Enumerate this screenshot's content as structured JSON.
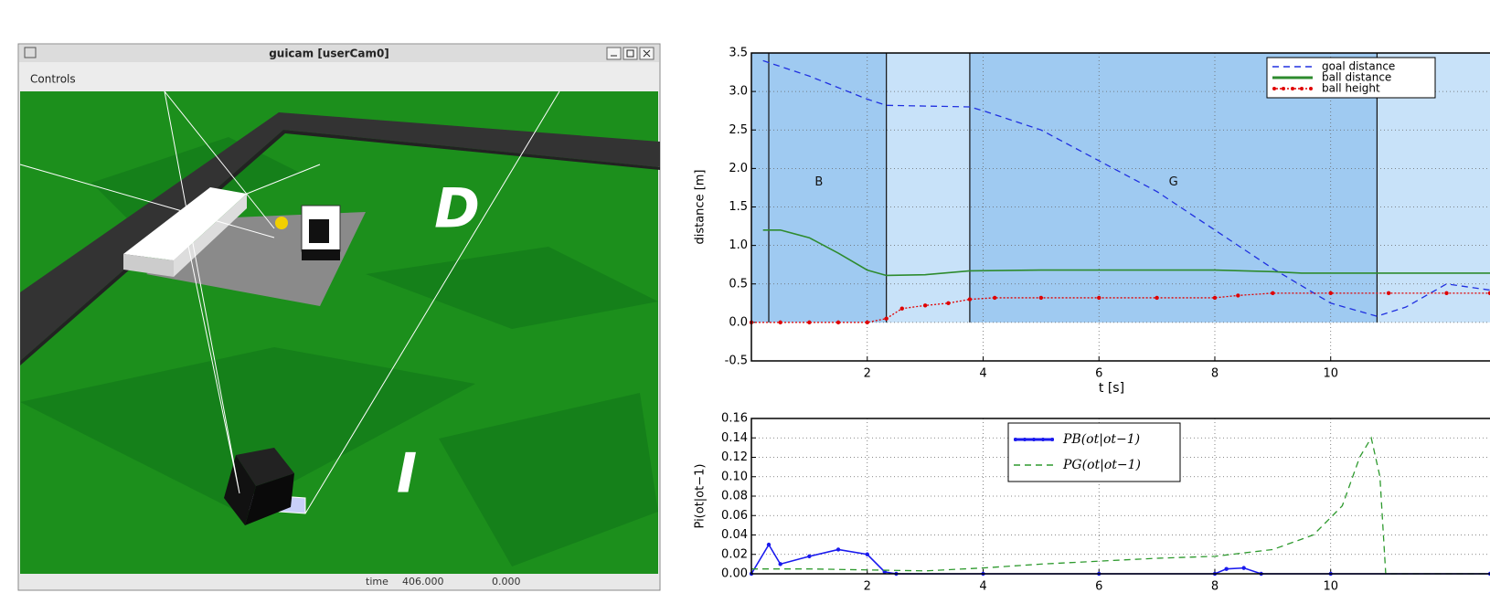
{
  "window": {
    "title": "guicam [userCam0]",
    "menu": [
      "Controls"
    ],
    "overlay_labels": [
      "D",
      "I"
    ],
    "status": {
      "label": "time",
      "values": [
        "406.000",
        "0.000"
      ]
    }
  },
  "chart_data": [
    {
      "type": "line",
      "xlabel": "t [s]",
      "ylabel": "distance [m]",
      "xlim": [
        0,
        12.75
      ],
      "ylim": [
        -0.5,
        3.5
      ],
      "xticks": [
        2,
        4,
        6,
        8,
        10
      ],
      "yticks": [
        {
          "value": 3.5,
          "label": "3.5"
        },
        {
          "value": 3,
          "label": "3.0"
        },
        {
          "value": 2.5,
          "label": "2.5"
        },
        {
          "value": 2,
          "label": "2.0"
        },
        {
          "value": 1.5,
          "label": "1.5"
        },
        {
          "value": 1,
          "label": "1.0"
        },
        {
          "value": 0.5,
          "label": "0.5"
        },
        {
          "value": 0,
          "label": "0.0"
        },
        {
          "value": -0.5,
          "label": "-0.5"
        }
      ],
      "grid": true,
      "legend": "upper right",
      "regions": [
        {
          "start": 0,
          "end": 2.33,
          "label": "B",
          "color": "#9fcaf1"
        },
        {
          "start": 2.33,
          "end": 3.77,
          "color": "#c8e2f9"
        },
        {
          "start": 3.77,
          "end": 10.8,
          "label": "G",
          "color": "#9fcaf1"
        },
        {
          "start": 10.8,
          "end": 12.75,
          "color": "#c8e2f9"
        }
      ],
      "vlines": [
        0.3,
        2.33,
        3.77,
        10.8
      ],
      "series": [
        {
          "name": "goal distance",
          "color": "#2030e0",
          "style": "dashed",
          "x": [
            0.2,
            1,
            2,
            2.33,
            3.77,
            4,
            5,
            6,
            7,
            8,
            9,
            10,
            10.8,
            11.3,
            12,
            12.75
          ],
          "values": [
            3.4,
            3.2,
            2.9,
            2.82,
            2.8,
            2.75,
            2.5,
            2.1,
            1.7,
            1.2,
            0.7,
            0.25,
            0.08,
            0.2,
            0.5,
            0.42
          ]
        },
        {
          "name": "ball distance",
          "color": "#2e8b2e",
          "style": "solid",
          "x": [
            0.2,
            0.5,
            1,
            1.5,
            2,
            2.33,
            3,
            3.77,
            5,
            8,
            9,
            9.5,
            12.75
          ],
          "values": [
            1.2,
            1.2,
            1.1,
            0.9,
            0.68,
            0.61,
            0.62,
            0.67,
            0.68,
            0.68,
            0.66,
            0.64,
            0.64
          ]
        },
        {
          "name": "ball height",
          "color": "#e00000",
          "style": "dotted-marker",
          "x": [
            0,
            0.5,
            1,
            1.5,
            2,
            2.33,
            2.6,
            3,
            3.4,
            3.77,
            4.2,
            5,
            6,
            7,
            8,
            8.4,
            9,
            10,
            11,
            12,
            12.75
          ],
          "values": [
            0,
            0,
            0,
            0,
            0,
            0.05,
            0.18,
            0.22,
            0.25,
            0.3,
            0.32,
            0.32,
            0.32,
            0.32,
            0.32,
            0.35,
            0.38,
            0.38,
            0.38,
            0.38,
            0.38
          ]
        }
      ]
    },
    {
      "type": "line",
      "ylabel": "Pi(ot|ot−1)",
      "xlim": [
        0,
        12.75
      ],
      "ylim": [
        0,
        0.16
      ],
      "xticks": [
        2,
        4,
        6,
        8,
        10
      ],
      "yticks": [
        {
          "value": 0.16,
          "label": "0.16"
        },
        {
          "value": 0.14,
          "label": "0.14"
        },
        {
          "value": 0.12,
          "label": "0.12"
        },
        {
          "value": 0.1,
          "label": "0.10"
        },
        {
          "value": 0.08,
          "label": "0.08"
        },
        {
          "value": 0.06,
          "label": "0.06"
        },
        {
          "value": 0.04,
          "label": "0.04"
        },
        {
          "value": 0.02,
          "label": "0.02"
        },
        {
          "value": 0,
          "label": "0.00"
        }
      ],
      "grid": true,
      "legend": "upper center",
      "series": [
        {
          "name": "PB(ot|ot−1)",
          "color": "#1a1aee",
          "style": "solid-marker",
          "x": [
            0,
            0.3,
            0.5,
            1,
            1.5,
            2,
            2.3,
            2.5,
            4,
            6,
            8,
            8.2,
            8.5,
            8.8,
            10,
            12.75
          ],
          "values": [
            0,
            0.03,
            0.01,
            0.018,
            0.025,
            0.02,
            0.002,
            0,
            0,
            0,
            0,
            0.005,
            0.006,
            0,
            0,
            0
          ]
        },
        {
          "name": "PG(ot|ot−1)",
          "color": "#2e9a2e",
          "style": "dashed",
          "x": [
            0,
            1,
            2,
            3,
            4,
            5,
            6,
            7,
            8,
            9,
            9.7,
            10.2,
            10.5,
            10.7,
            10.85,
            10.95,
            12.75
          ],
          "values": [
            0.005,
            0.005,
            0.004,
            0.003,
            0.006,
            0.01,
            0.013,
            0.016,
            0.018,
            0.025,
            0.04,
            0.07,
            0.12,
            0.14,
            0.1,
            0,
            0
          ]
        }
      ]
    }
  ]
}
